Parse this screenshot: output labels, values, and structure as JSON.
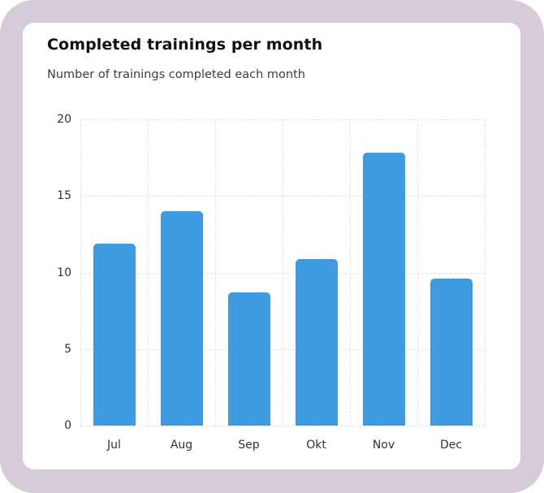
{
  "card": {
    "title": "Completed trainings per month",
    "subtitle": "Number of trainings completed each month"
  },
  "colors": {
    "frame": "#d5cbd9",
    "card": "#ffffff",
    "bar": "#3f9be0",
    "grid": "#e3e3e3"
  },
  "chart_data": {
    "type": "bar",
    "title": "Completed trainings per month",
    "subtitle": "Number of trainings completed each month",
    "categories": [
      "Jul",
      "Aug",
      "Sep",
      "Okt",
      "Nov",
      "Dec"
    ],
    "values": [
      11.9,
      14.0,
      8.7,
      10.9,
      17.8,
      9.6
    ],
    "xlabel": "",
    "ylabel": "",
    "ylim": [
      0,
      20
    ],
    "yticks": [
      "0",
      "5",
      "10",
      "15",
      "20"
    ],
    "grid": true,
    "grid_style": "dashed",
    "legend": null
  }
}
